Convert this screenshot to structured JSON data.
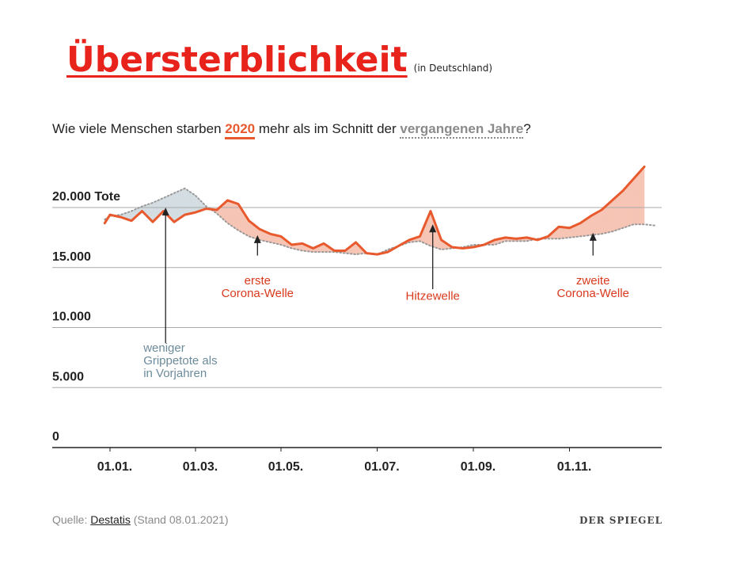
{
  "headline": {
    "main": "Übersterblichkeit",
    "sub": "(in Deutschland)"
  },
  "subtitle": {
    "before": "Wie viele Menschen starben ",
    "year": "2020",
    "middle": " mehr als im Schnitt der ",
    "avg": "vergangenen Jahre",
    "after": "?"
  },
  "source": {
    "label": "Quelle: ",
    "link": "Destatis",
    "note": " (Stand 08.01.2021)"
  },
  "brand": "DER SPIEGEL",
  "colors": {
    "line2020": "#e85a2e",
    "excessFill": "#f6c5b5",
    "deficitFill": "#d3dde2",
    "avgLine": "#999999",
    "grid": "#aaaaaa",
    "annotationRed": "#d9391c",
    "annotationBlue": "#6c8b9a"
  },
  "chart_data": {
    "type": "line",
    "ylim": [
      0,
      25000
    ],
    "yticks": [
      0,
      5000,
      10000,
      15000,
      20000
    ],
    "ytick_labels": [
      "0",
      "5.000",
      "10.000",
      "15.000",
      "20.000 Tote"
    ],
    "xticks": [
      1,
      9,
      17,
      26,
      35,
      44
    ],
    "xtick_labels": [
      "01.01.",
      "01.03.",
      "01.05.",
      "01.07.",
      "01.09.",
      "01.11."
    ],
    "series": [
      {
        "name": "2020",
        "x": [
          0.5,
          1,
          2,
          3,
          4,
          5,
          6,
          7,
          8,
          9,
          10,
          11,
          12,
          13,
          14,
          15,
          16,
          17,
          18,
          19,
          20,
          21,
          22,
          23,
          24,
          25,
          26,
          27,
          28,
          29,
          30,
          31,
          32,
          33,
          34,
          35,
          36,
          37,
          38,
          39,
          40,
          41,
          42,
          43,
          44,
          45,
          46,
          47,
          48,
          49,
          50,
          51
        ],
        "values": [
          18700,
          19400,
          19200,
          18900,
          19700,
          18800,
          19700,
          18800,
          19400,
          19600,
          19900,
          19800,
          20600,
          20300,
          18900,
          18200,
          17800,
          17600,
          16900,
          17000,
          16600,
          17000,
          16400,
          16400,
          17100,
          16200,
          16100,
          16300,
          16800,
          17300,
          17600,
          19700,
          17300,
          16700,
          16600,
          16700,
          16900,
          17300,
          17500,
          17400,
          17500,
          17300,
          17600,
          18400,
          18300,
          18700,
          19300,
          19800,
          20600,
          21400,
          22400,
          23400
        ]
      },
      {
        "name": "Durchschnitt vergangene Jahre",
        "x": [
          0.5,
          1,
          2,
          3,
          4,
          5,
          6,
          7,
          8,
          9,
          10,
          11,
          12,
          13,
          14,
          15,
          16,
          17,
          18,
          19,
          20,
          21,
          22,
          23,
          24,
          25,
          26,
          27,
          28,
          29,
          30,
          31,
          32,
          33,
          34,
          35,
          36,
          37,
          38,
          39,
          40,
          41,
          42,
          43,
          44,
          45,
          46,
          47,
          48,
          49,
          50,
          51,
          52
        ],
        "values": [
          19000,
          19300,
          19400,
          19700,
          20100,
          20400,
          20800,
          21200,
          21600,
          21000,
          20100,
          19500,
          18700,
          18100,
          17600,
          17300,
          17100,
          16900,
          16600,
          16400,
          16300,
          16300,
          16300,
          16200,
          16100,
          16200,
          16100,
          16500,
          16800,
          17100,
          17200,
          16800,
          16500,
          16600,
          16700,
          16900,
          16900,
          16900,
          17200,
          17200,
          17200,
          17400,
          17400,
          17400,
          17500,
          17600,
          17700,
          17800,
          18000,
          18300,
          18600,
          18600,
          18500
        ]
      }
    ],
    "annotations": [
      {
        "text": [
          "erste",
          "Corona-Welle"
        ],
        "x": 14.8,
        "y_start": 17700,
        "y_end": 16000,
        "label_y": 13600,
        "color": "red"
      },
      {
        "text": [
          "Hitzewelle"
        ],
        "x": 31.2,
        "y_start": 18600,
        "y_end": 13200,
        "label_y": 12300,
        "color": "red"
      },
      {
        "text": [
          "zweite",
          "Corona-Welle"
        ],
        "x": 46.2,
        "y_start": 17900,
        "y_end": 16000,
        "label_y": 13600,
        "color": "red"
      },
      {
        "text": [
          "weniger",
          "Grippetote als",
          "in Vorjahren"
        ],
        "x": 6.2,
        "y_start": 20000,
        "y_end": 8700,
        "label_y": 8000,
        "color": "blue"
      }
    ]
  }
}
